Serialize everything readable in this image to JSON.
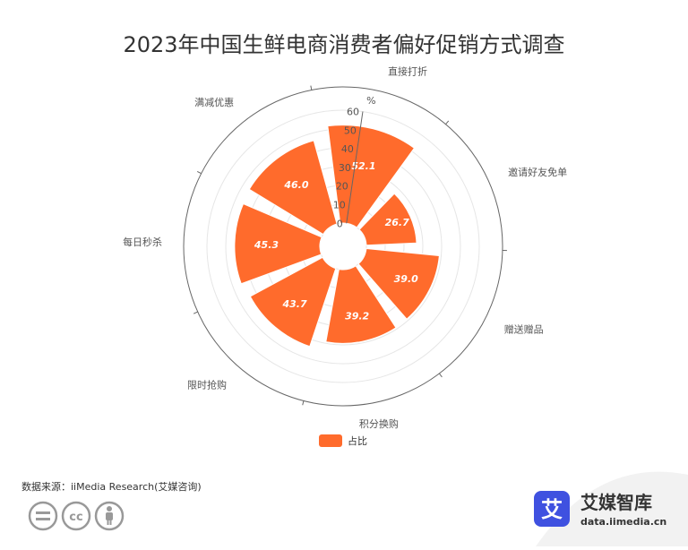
{
  "title": "2023年中国生鲜电商消费者偏好促销方式调查",
  "source": "数据来源：iiMedia Research(艾媒咨询)",
  "brand": {
    "logo_char": "艾",
    "name": "艾媒智库",
    "url": "data.iimedia.cn",
    "color": "#3f51e0"
  },
  "license_icons": [
    "equals-icon",
    "cc-icon",
    "person-icon"
  ],
  "chart_data": {
    "type": "polar-bar",
    "title": "2023年中国生鲜电商消费者偏好促销方式调查",
    "unit": "%",
    "categories": [
      "直接打折",
      "邀请好友免单",
      "赠送赠品",
      "积分换购",
      "限时抢购",
      "每日秒杀",
      "满减优惠"
    ],
    "series": [
      {
        "name": "占比",
        "values": [
          52.1,
          26.7,
          39.0,
          39.2,
          43.7,
          45.3,
          46.0
        ],
        "color": "#ff6b2c"
      }
    ],
    "labels": [
      "52.1",
      "26.7",
      "39.0",
      "39.2",
      "43.7",
      "45.3",
      "46.0"
    ],
    "radius_ticks": [
      "0",
      "10",
      "20",
      "30",
      "40",
      "50",
      "60"
    ],
    "rlim": [
      0,
      60
    ],
    "grid": true,
    "legend": "bottom"
  }
}
